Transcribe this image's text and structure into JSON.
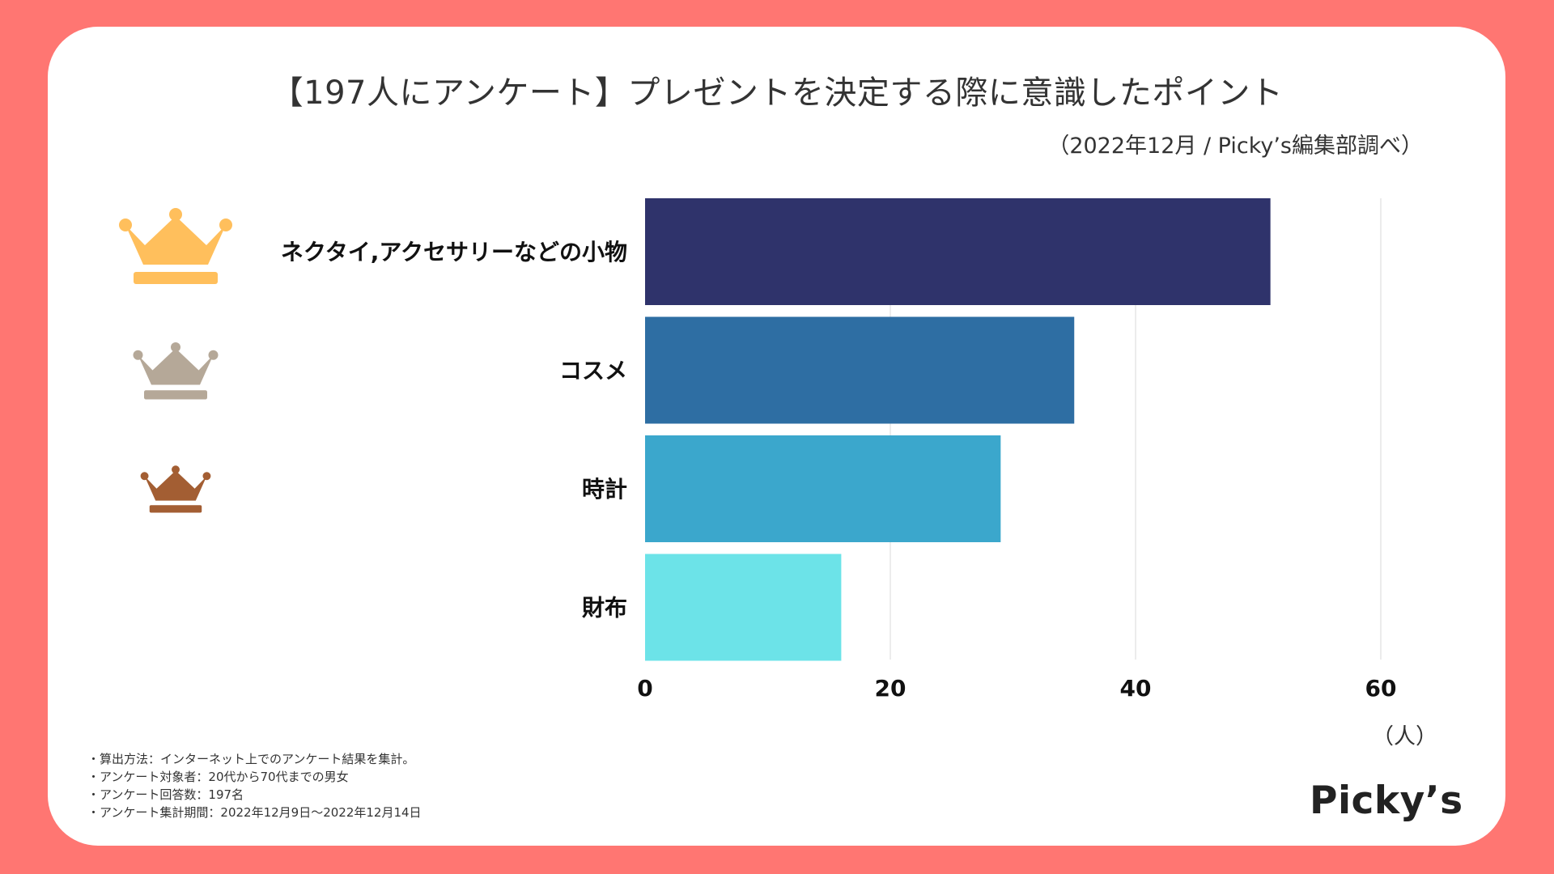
{
  "title": "【197人にアンケート】プレゼントを決定する際に意識したポイント",
  "subtitle": "（2022年12月 / Picky’s編集部調べ）",
  "chart_data": {
    "type": "bar",
    "orientation": "horizontal",
    "categories": [
      "ネクタイ,アクセサリーなどの小物",
      "コスメ",
      "時計",
      "財布"
    ],
    "values": [
      51,
      35,
      29,
      16
    ],
    "colors": [
      "#2f336b",
      "#2e6ea3",
      "#3ba7cc",
      "#6ce3e8"
    ],
    "xlim": [
      0,
      60
    ],
    "xticks": [
      0,
      20,
      40,
      60
    ],
    "xlabel": "（人）",
    "grid": true
  },
  "rank_crowns": [
    {
      "rank": 1,
      "name": "gold-crown-icon",
      "color": "#ffbf5c"
    },
    {
      "rank": 2,
      "name": "silver-crown-icon",
      "color": "#b5a898"
    },
    {
      "rank": 3,
      "name": "bronze-crown-icon",
      "color": "#a35e33"
    }
  ],
  "notes": [
    "・算出方法：インターネット上でのアンケート結果を集計。",
    "・アンケート対象者：20代から70代までの男女",
    "・アンケート回答数：197名",
    "・アンケート集計期間：2022年12月9日〜2022年12月14日"
  ],
  "logo": "Picky’s"
}
